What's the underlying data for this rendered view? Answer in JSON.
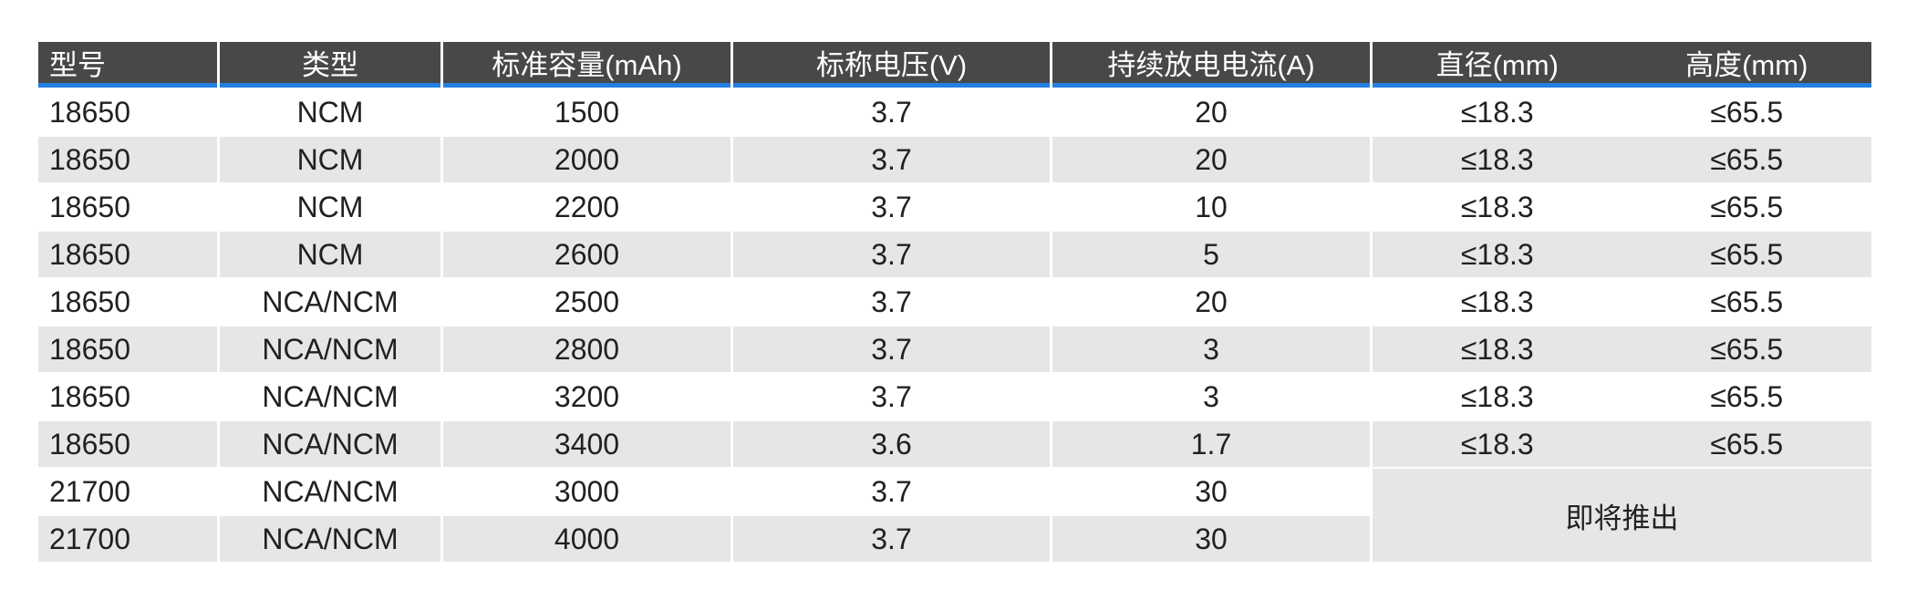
{
  "colors": {
    "accent": "#2280e3",
    "header_bg": "#48484a",
    "row_alt": "#e6e6e7",
    "text": "#202124",
    "header_text": "#ffffff"
  },
  "table": {
    "headers": {
      "model": "型号",
      "type": "类型",
      "capacity": "标准容量(mAh)",
      "voltage": "标称电压(V)",
      "current": "持续放电电流(A)",
      "diameter": "直径(mm)",
      "height": "高度(mm)"
    },
    "rows": [
      {
        "model": "18650",
        "type": "NCM",
        "capacity": "1500",
        "voltage": "3.7",
        "current": "20",
        "diameter": "≤18.3",
        "height": "≤65.5"
      },
      {
        "model": "18650",
        "type": "NCM",
        "capacity": "2000",
        "voltage": "3.7",
        "current": "20",
        "diameter": "≤18.3",
        "height": "≤65.5"
      },
      {
        "model": "18650",
        "type": "NCM",
        "capacity": "2200",
        "voltage": "3.7",
        "current": "10",
        "diameter": "≤18.3",
        "height": "≤65.5"
      },
      {
        "model": "18650",
        "type": "NCM",
        "capacity": "2600",
        "voltage": "3.7",
        "current": "5",
        "diameter": "≤18.3",
        "height": "≤65.5"
      },
      {
        "model": "18650",
        "type": "NCA/NCM",
        "capacity": "2500",
        "voltage": "3.7",
        "current": "20",
        "diameter": "≤18.3",
        "height": "≤65.5"
      },
      {
        "model": "18650",
        "type": "NCA/NCM",
        "capacity": "2800",
        "voltage": "3.7",
        "current": "3",
        "diameter": "≤18.3",
        "height": "≤65.5"
      },
      {
        "model": "18650",
        "type": "NCA/NCM",
        "capacity": "3200",
        "voltage": "3.7",
        "current": "3",
        "diameter": "≤18.3",
        "height": "≤65.5"
      },
      {
        "model": "18650",
        "type": "NCA/NCM",
        "capacity": "3400",
        "voltage": "3.6",
        "current": "1.7",
        "diameter": "≤18.3",
        "height": "≤65.5"
      },
      {
        "model": "21700",
        "type": "NCA/NCM",
        "capacity": "3000",
        "voltage": "3.7",
        "current": "30"
      },
      {
        "model": "21700",
        "type": "NCA/NCM",
        "capacity": "4000",
        "voltage": "3.7",
        "current": "30"
      }
    ],
    "coming_soon_label": "即将推出"
  }
}
